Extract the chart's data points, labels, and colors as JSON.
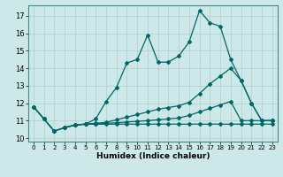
{
  "xlabel": "Humidex (Indice chaleur)",
  "bg_color": "#cde8e8",
  "grid_color": "#b0cccc",
  "line_color": "#006666",
  "xlim": [
    -0.5,
    23.5
  ],
  "ylim": [
    9.8,
    17.6
  ],
  "yticks": [
    10,
    11,
    12,
    13,
    14,
    15,
    16,
    17
  ],
  "xticks": [
    0,
    1,
    2,
    3,
    4,
    5,
    6,
    7,
    8,
    9,
    10,
    11,
    12,
    13,
    14,
    15,
    16,
    17,
    18,
    19,
    20,
    21,
    22,
    23
  ],
  "series1_x": [
    0,
    1,
    2,
    3,
    4,
    5,
    6,
    7,
    8,
    9,
    10,
    11,
    12,
    13,
    14,
    15,
    16,
    17,
    18,
    19,
    20,
    21,
    22,
    23
  ],
  "series1_y": [
    11.8,
    11.1,
    10.4,
    10.6,
    10.75,
    10.8,
    11.1,
    12.1,
    12.9,
    14.3,
    14.5,
    15.9,
    14.35,
    14.35,
    14.7,
    15.5,
    17.3,
    16.6,
    16.4,
    14.5,
    13.3,
    12.0,
    11.0,
    11.0
  ],
  "series2_x": [
    0,
    1,
    2,
    3,
    4,
    5,
    6,
    7,
    8,
    9,
    10,
    11,
    12,
    13,
    14,
    15,
    16,
    17,
    18,
    19,
    20,
    21,
    22,
    23
  ],
  "series2_y": [
    11.8,
    11.1,
    10.4,
    10.6,
    10.75,
    10.8,
    10.85,
    10.9,
    11.05,
    11.2,
    11.35,
    11.5,
    11.65,
    11.75,
    11.85,
    12.05,
    12.55,
    13.1,
    13.55,
    14.0,
    13.3,
    12.0,
    11.0,
    11.0
  ],
  "series3_x": [
    0,
    1,
    2,
    3,
    4,
    5,
    6,
    7,
    8,
    9,
    10,
    11,
    12,
    13,
    14,
    15,
    16,
    17,
    18,
    19,
    20,
    21,
    22,
    23
  ],
  "series3_y": [
    11.8,
    11.1,
    10.4,
    10.6,
    10.75,
    10.8,
    10.82,
    10.84,
    10.88,
    10.92,
    10.96,
    11.0,
    11.05,
    11.1,
    11.15,
    11.3,
    11.5,
    11.7,
    11.9,
    12.1,
    11.0,
    11.0,
    11.0,
    11.0
  ],
  "series4_x": [
    3,
    4,
    5,
    6,
    7,
    8,
    9,
    10,
    11,
    12,
    13,
    14,
    15,
    16,
    17,
    18,
    19,
    20,
    21,
    22,
    23
  ],
  "series4_y": [
    10.6,
    10.75,
    10.8,
    10.8,
    10.8,
    10.8,
    10.8,
    10.8,
    10.8,
    10.8,
    10.8,
    10.8,
    10.8,
    10.8,
    10.8,
    10.8,
    10.8,
    10.8,
    10.8,
    10.8,
    10.8
  ]
}
